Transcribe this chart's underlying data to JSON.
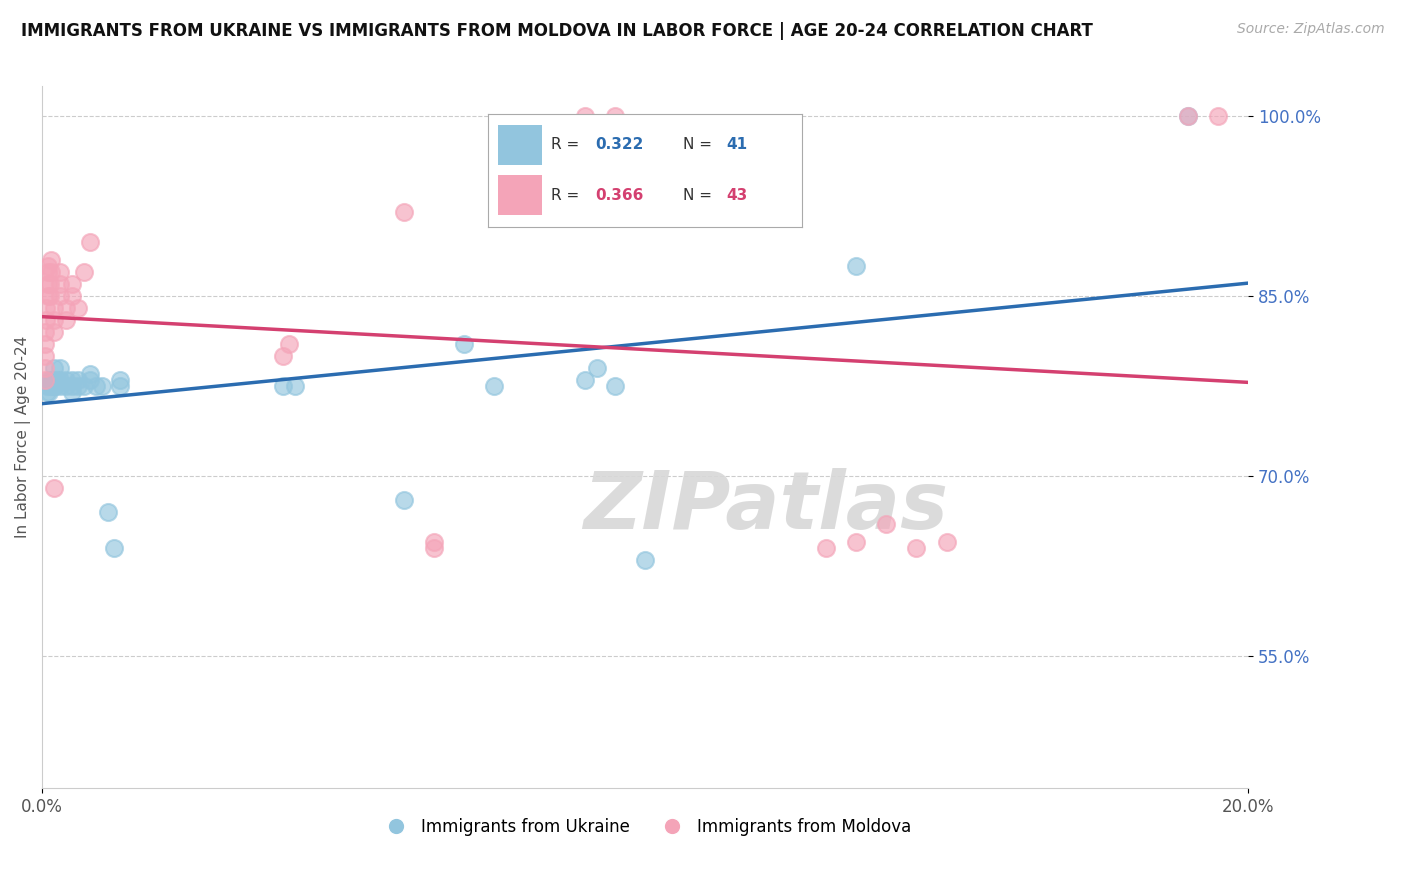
{
  "title": "IMMIGRANTS FROM UKRAINE VS IMMIGRANTS FROM MOLDOVA IN LABOR FORCE | AGE 20-24 CORRELATION CHART",
  "source": "Source: ZipAtlas.com",
  "xlabel": "",
  "ylabel": "In Labor Force | Age 20-24",
  "x_min": 0.0,
  "x_max": 0.2,
  "y_min": 0.44,
  "y_max": 1.025,
  "y_ticks": [
    0.55,
    0.7,
    0.85,
    1.0
  ],
  "y_tick_labels": [
    "55.0%",
    "70.0%",
    "85.0%",
    "100.0%"
  ],
  "ukraine_color": "#92c5de",
  "moldova_color": "#f4a4b8",
  "ukraine_line_color": "#2b6cb0",
  "moldova_line_color": "#d44070",
  "R_ukraine": 0.322,
  "N_ukraine": 41,
  "R_moldova": 0.366,
  "N_moldova": 43,
  "ukraine_x": [
    0.0008,
    0.0008,
    0.0012,
    0.0012,
    0.0015,
    0.0015,
    0.0018,
    0.002,
    0.002,
    0.0022,
    0.0025,
    0.003,
    0.003,
    0.003,
    0.004,
    0.004,
    0.005,
    0.005,
    0.005,
    0.006,
    0.006,
    0.007,
    0.008,
    0.008,
    0.009,
    0.01,
    0.011,
    0.012,
    0.013,
    0.013,
    0.04,
    0.042,
    0.06,
    0.07,
    0.075,
    0.09,
    0.092,
    0.095,
    0.1,
    0.135,
    0.19
  ],
  "ukraine_y": [
    0.775,
    0.77,
    0.78,
    0.77,
    0.78,
    0.775,
    0.78,
    0.79,
    0.775,
    0.775,
    0.78,
    0.775,
    0.78,
    0.79,
    0.775,
    0.78,
    0.78,
    0.775,
    0.77,
    0.775,
    0.78,
    0.775,
    0.785,
    0.78,
    0.775,
    0.775,
    0.67,
    0.64,
    0.775,
    0.78,
    0.775,
    0.775,
    0.68,
    0.81,
    0.775,
    0.78,
    0.79,
    0.775,
    0.63,
    0.875,
    1.0
  ],
  "moldova_x": [
    0.0005,
    0.0005,
    0.0005,
    0.0005,
    0.0005,
    0.0007,
    0.0007,
    0.001,
    0.001,
    0.001,
    0.001,
    0.0013,
    0.0013,
    0.0015,
    0.0015,
    0.002,
    0.002,
    0.002,
    0.003,
    0.003,
    0.003,
    0.004,
    0.004,
    0.005,
    0.005,
    0.006,
    0.007,
    0.008,
    0.04,
    0.041,
    0.06,
    0.065,
    0.065,
    0.09,
    0.095,
    0.13,
    0.135,
    0.14,
    0.145,
    0.15,
    0.19,
    0.195,
    0.002
  ],
  "moldova_y": [
    0.78,
    0.79,
    0.8,
    0.81,
    0.82,
    0.83,
    0.84,
    0.85,
    0.86,
    0.87,
    0.875,
    0.85,
    0.86,
    0.87,
    0.88,
    0.82,
    0.83,
    0.84,
    0.85,
    0.86,
    0.87,
    0.83,
    0.84,
    0.85,
    0.86,
    0.84,
    0.87,
    0.895,
    0.8,
    0.81,
    0.92,
    0.64,
    0.645,
    1.0,
    1.0,
    0.64,
    0.645,
    0.66,
    0.64,
    0.645,
    1.0,
    1.0,
    0.69
  ],
  "watermark": "ZIPatlas",
  "background_color": "#ffffff",
  "grid_color": "#cccccc",
  "legend_ukraine_label": "Immigrants from Ukraine",
  "legend_moldova_label": "Immigrants from Moldova"
}
